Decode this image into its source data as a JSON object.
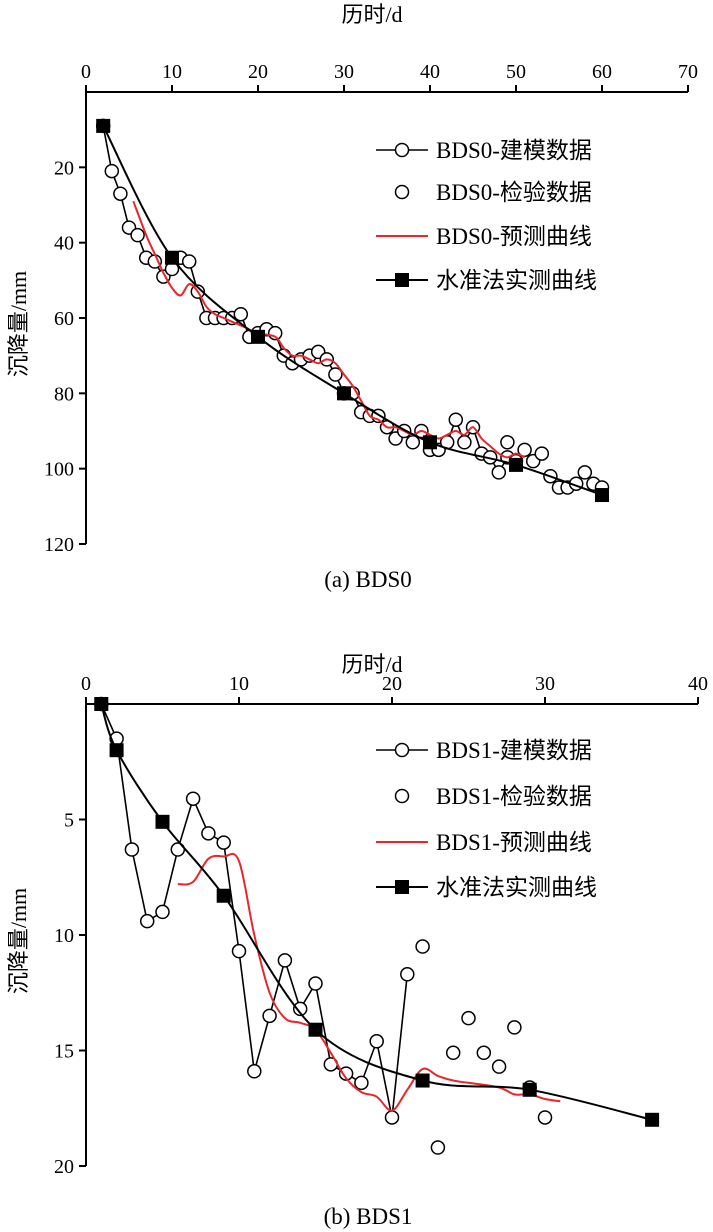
{
  "chart_data": [
    {
      "type": "line",
      "title": "",
      "caption": "(a) BDS0",
      "xlabel": "历时/d",
      "ylabel": "沉降量/mm",
      "xlim": [
        0,
        70
      ],
      "ylim": [
        0,
        120
      ],
      "x_axis_position": "top",
      "y_inverted": true,
      "x_ticks": [
        0,
        10,
        20,
        30,
        40,
        50,
        60,
        70
      ],
      "y_ticks": [
        20,
        40,
        60,
        80,
        100,
        120
      ],
      "legend_position": "top-right",
      "series": [
        {
          "name": "BDS0-建模数据",
          "style": "line-open-circle",
          "points": [
            [
              2,
              9
            ],
            [
              3,
              21
            ],
            [
              4,
              27
            ],
            [
              5,
              36
            ],
            [
              6,
              38
            ],
            [
              7,
              44
            ],
            [
              8,
              45
            ],
            [
              9,
              49
            ],
            [
              10,
              47
            ],
            [
              11,
              44
            ],
            [
              12,
              45
            ],
            [
              13,
              53
            ],
            [
              14,
              60
            ],
            [
              15,
              60
            ],
            [
              16,
              60
            ],
            [
              17,
              60
            ],
            [
              18,
              59
            ],
            [
              19,
              65
            ],
            [
              20,
              64
            ],
            [
              21,
              63
            ],
            [
              22,
              64
            ],
            [
              23,
              70
            ],
            [
              24,
              72
            ],
            [
              25,
              71
            ],
            [
              26,
              70
            ],
            [
              27,
              69
            ],
            [
              28,
              71
            ],
            [
              29,
              75
            ],
            [
              30,
              80
            ],
            [
              31,
              80
            ],
            [
              32,
              85
            ],
            [
              33,
              86
            ],
            [
              34,
              86
            ],
            [
              35,
              89
            ],
            [
              36,
              92
            ],
            [
              37,
              90
            ],
            [
              38,
              93
            ],
            [
              39,
              90
            ],
            [
              40,
              95
            ],
            [
              41,
              95
            ],
            [
              42,
              93
            ],
            [
              43,
              87
            ],
            [
              44,
              93
            ],
            [
              45,
              89
            ],
            [
              46,
              96
            ],
            [
              47,
              97
            ],
            [
              48,
              101
            ],
            [
              49,
              97
            ]
          ]
        },
        {
          "name": "BDS0-检验数据",
          "style": "open-circle",
          "points": [
            [
              49,
              93
            ],
            [
              50,
              98
            ],
            [
              51,
              95
            ],
            [
              52,
              98
            ],
            [
              53,
              96
            ],
            [
              54,
              102
            ],
            [
              55,
              105
            ],
            [
              56,
              105
            ],
            [
              57,
              104
            ],
            [
              58,
              101
            ],
            [
              59,
              104
            ],
            [
              60,
              105
            ]
          ]
        },
        {
          "name": "BDS0-预测曲线",
          "style": "red-line",
          "color": "#e8262b",
          "points": [
            [
              5.5,
              29
            ],
            [
              7,
              38
            ],
            [
              8,
              43
            ],
            [
              9,
              48
            ],
            [
              10,
              52
            ],
            [
              11,
              54
            ],
            [
              12,
              51
            ],
            [
              13,
              53
            ],
            [
              14,
              57
            ],
            [
              15,
              59
            ],
            [
              16,
              60
            ],
            [
              17,
              61
            ],
            [
              18,
              62
            ],
            [
              20,
              64
            ],
            [
              22,
              65
            ],
            [
              23,
              68
            ],
            [
              24,
              70
            ],
            [
              25,
              70
            ],
            [
              26,
              71
            ],
            [
              27,
              72
            ],
            [
              28,
              71
            ],
            [
              29,
              72
            ],
            [
              30,
              75
            ],
            [
              31,
              78
            ],
            [
              32,
              82
            ],
            [
              33,
              86
            ],
            [
              34,
              87
            ],
            [
              35,
              89
            ],
            [
              36,
              89
            ],
            [
              37,
              90
            ],
            [
              38,
              91
            ],
            [
              39,
              90
            ],
            [
              40,
              91
            ],
            [
              41,
              92
            ],
            [
              42,
              91
            ],
            [
              43,
              90
            ],
            [
              44,
              91
            ],
            [
              45,
              89
            ],
            [
              46,
              92
            ],
            [
              47,
              94
            ],
            [
              48,
              96
            ],
            [
              49,
              97
            ],
            [
              50,
              96
            ],
            [
              51,
              97
            ]
          ]
        },
        {
          "name": "水准法实测曲线",
          "style": "line-filled-square",
          "points": [
            [
              2,
              9
            ],
            [
              10,
              44
            ],
            [
              20,
              65
            ],
            [
              30,
              80
            ],
            [
              40,
              93
            ],
            [
              50,
              99
            ],
            [
              60,
              107
            ]
          ]
        }
      ]
    },
    {
      "type": "line",
      "title": "",
      "caption": "(b) BDS1",
      "xlabel": "历时/d",
      "ylabel": "沉降量/mm",
      "xlim": [
        0,
        40
      ],
      "ylim": [
        0,
        20
      ],
      "x_axis_position": "top",
      "y_inverted": true,
      "x_ticks": [
        0,
        10,
        20,
        30,
        40
      ],
      "y_ticks": [
        5,
        10,
        15,
        20
      ],
      "legend_position": "top-right",
      "series": [
        {
          "name": "BDS1-建模数据",
          "style": "line-open-circle",
          "points": [
            [
              1,
              0
            ],
            [
              2,
              1.5
            ],
            [
              3,
              6.3
            ],
            [
              4,
              9.4
            ],
            [
              5,
              9.0
            ],
            [
              6,
              6.3
            ],
            [
              7,
              4.1
            ],
            [
              8,
              5.6
            ],
            [
              9,
              6.0
            ],
            [
              10,
              10.7
            ],
            [
              11,
              15.9
            ],
            [
              12,
              13.5
            ],
            [
              13,
              11.1
            ],
            [
              14,
              13.2
            ],
            [
              15,
              12.1
            ],
            [
              16,
              15.6
            ],
            [
              17,
              16.0
            ],
            [
              18,
              16.4
            ],
            [
              19,
              14.6
            ],
            [
              20,
              17.9
            ],
            [
              21,
              11.7
            ]
          ]
        },
        {
          "name": "BDS1-检验数据",
          "style": "open-circle",
          "points": [
            [
              22,
              10.5
            ],
            [
              23,
              19.2
            ],
            [
              24,
              15.1
            ],
            [
              25,
              13.6
            ],
            [
              26,
              15.1
            ],
            [
              27,
              15.7
            ],
            [
              28,
              14.0
            ],
            [
              29,
              16.6
            ],
            [
              30,
              17.9
            ]
          ]
        },
        {
          "name": "BDS1-预测曲线",
          "style": "red-line",
          "color": "#e8262b",
          "points": [
            [
              6,
              7.8
            ],
            [
              7,
              7.7
            ],
            [
              8,
              6.7
            ],
            [
              9,
              6.6
            ],
            [
              10,
              6.8
            ],
            [
              11,
              10.0
            ],
            [
              12,
              12.5
            ],
            [
              13,
              13.6
            ],
            [
              14,
              13.8
            ],
            [
              15,
              14.1
            ],
            [
              16,
              15.1
            ],
            [
              17,
              16.2
            ],
            [
              18,
              16.8
            ],
            [
              19,
              17.0
            ],
            [
              20,
              17.6
            ],
            [
              21,
              16.7
            ],
            [
              22,
              15.8
            ],
            [
              23,
              16.1
            ],
            [
              24,
              16.3
            ],
            [
              25,
              16.4
            ],
            [
              27,
              16.6
            ],
            [
              28,
              16.9
            ],
            [
              29,
              16.9
            ],
            [
              30,
              17.1
            ],
            [
              31,
              17.2
            ]
          ]
        },
        {
          "name": "水准法实测曲线",
          "style": "line-filled-square",
          "points": [
            [
              1,
              0
            ],
            [
              2,
              2
            ],
            [
              5,
              5.1
            ],
            [
              9,
              8.3
            ],
            [
              15,
              14.1
            ],
            [
              22,
              16.3
            ],
            [
              29,
              16.7
            ],
            [
              37,
              18
            ]
          ]
        }
      ]
    }
  ]
}
